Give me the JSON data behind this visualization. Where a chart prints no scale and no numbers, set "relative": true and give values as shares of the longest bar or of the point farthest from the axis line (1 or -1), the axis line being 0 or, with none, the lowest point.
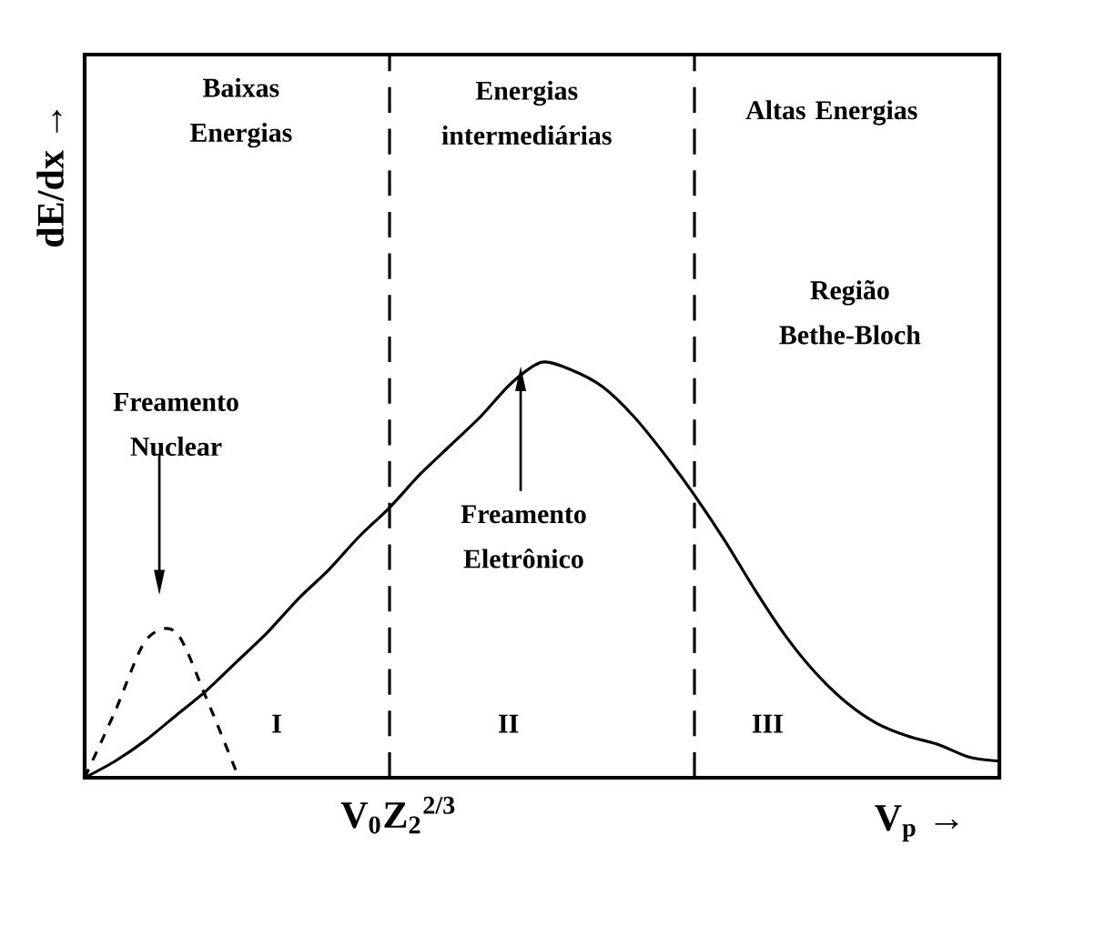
{
  "chart_data": {
    "type": "line",
    "relative": true,
    "xlabel": "V$_{p}$ →",
    "ylabel": "dE/dx →",
    "categories": [
      null,
      null,
      null,
      null,
      null,
      null,
      null,
      null,
      null,
      null,
      null,
      null,
      null,
      null,
      null,
      null,
      null,
      null,
      null,
      null,
      null,
      null,
      null,
      null,
      null,
      null,
      null,
      null,
      null,
      null,
      null
    ],
    "series": [
      {
        "color": "#000000",
        "line_style": "solid",
        "values": [
          0,
          0.04,
          0.09,
          0.15,
          0.21,
          0.28,
          0.35,
          0.43,
          0.5,
          0.58,
          0.65,
          0.73,
          0.8,
          0.87,
          0.95,
          1.0,
          0.98,
          0.94,
          0.87,
          0.78,
          0.68,
          0.57,
          0.45,
          0.34,
          0.25,
          0.18,
          0.13,
          0.1,
          0.08,
          0.05,
          0.04
        ]
      },
      {
        "color": "#000000",
        "line_style": "dashed",
        "values": [
          0,
          0.16,
          0.33,
          0.35,
          0.19,
          0.01,
          null,
          null,
          null,
          null,
          null,
          null,
          null,
          null,
          null,
          null,
          null,
          null,
          null,
          null,
          null,
          null,
          null,
          null,
          null,
          null,
          null,
          null,
          null,
          null,
          null
        ]
      }
    ],
    "annotations": [
      "Baixas Energias",
      "Energias intermediárias",
      "Altas Energias",
      "Região Bethe-Bloch",
      "Freamento Nuclear",
      "Freamento Eletrônico",
      "I",
      "II",
      "III",
      "V$_{0}$Z$_{2}$$^{2/3}$"
    ],
    "marker": "none"
  }
}
